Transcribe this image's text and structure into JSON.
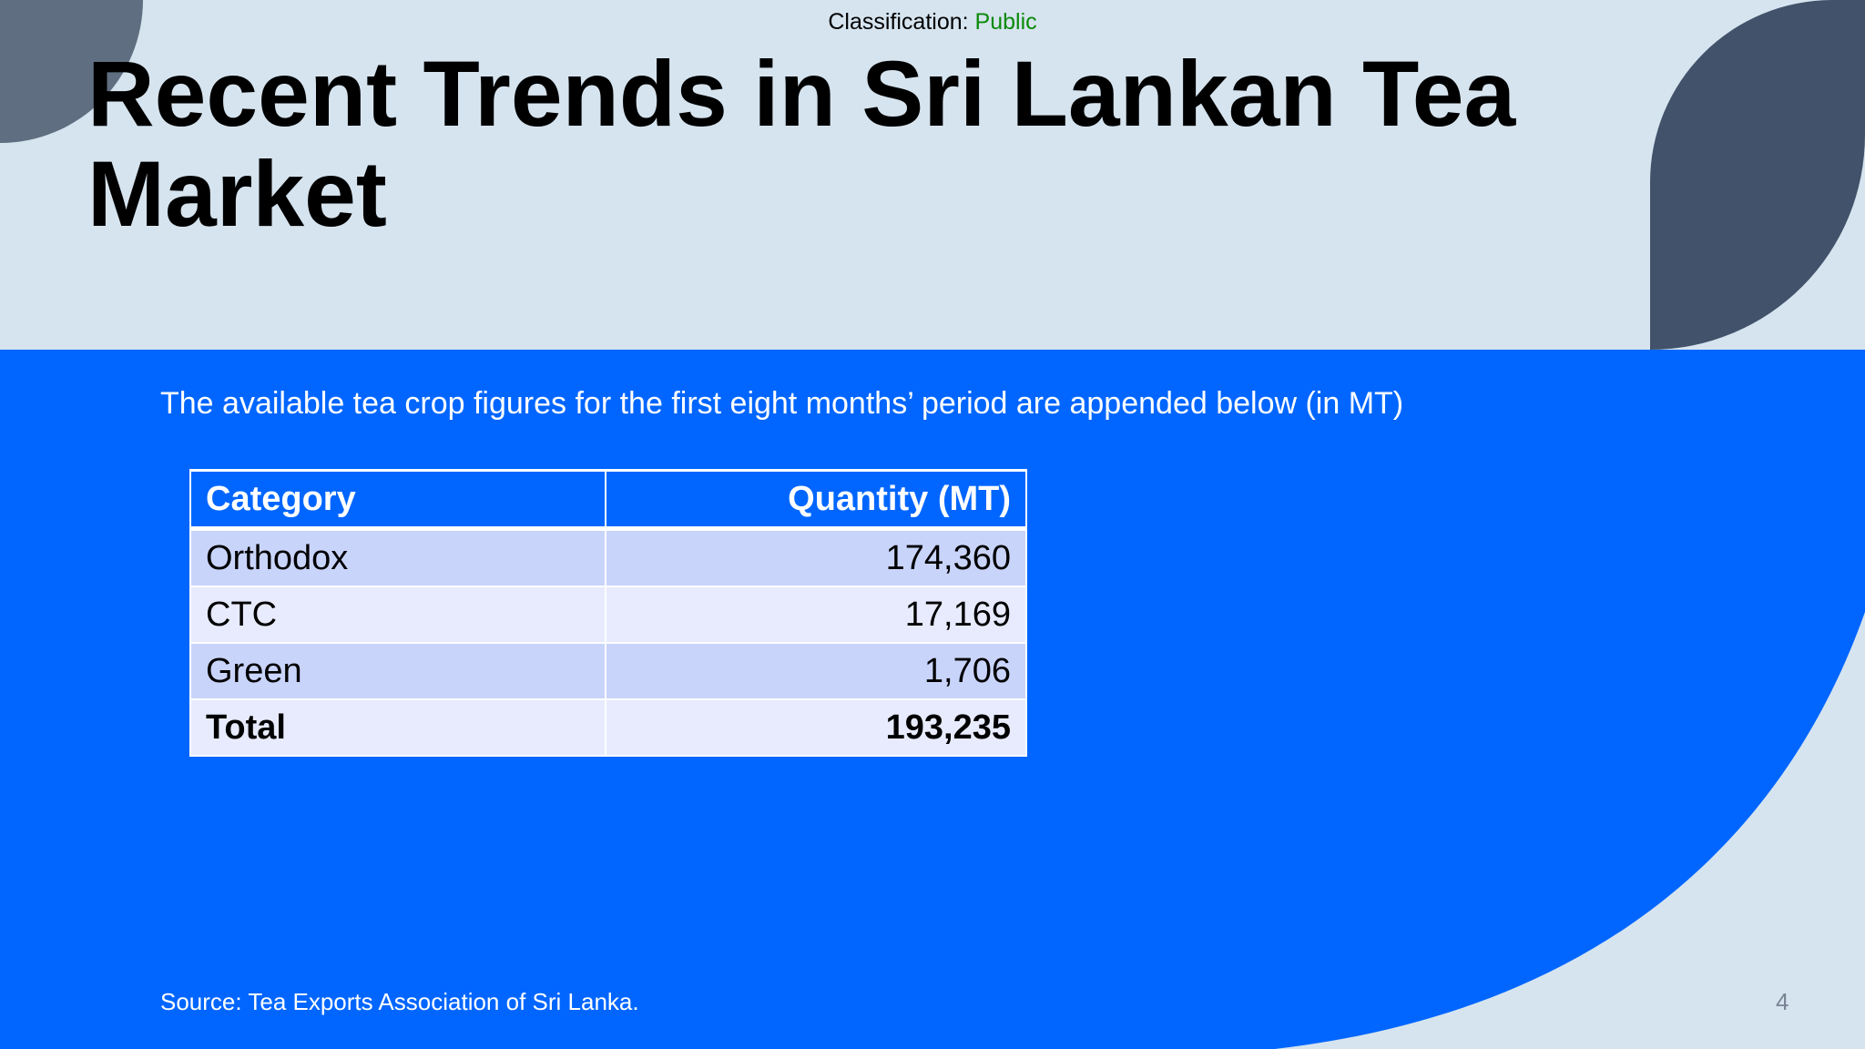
{
  "header": {
    "classification_label": "Classification:",
    "classification_value": "Public",
    "title": "Recent Trends in Sri Lankan Tea Market"
  },
  "body": {
    "intro": "The available tea crop figures for the first eight months’ period are appended below (in MT)"
  },
  "table": {
    "headers": [
      "Category",
      "Quantity (MT)"
    ],
    "rows": [
      {
        "category": "Orthodox",
        "quantity": "174,360"
      },
      {
        "category": "CTC",
        "quantity": "17,169"
      },
      {
        "category": "Green",
        "quantity": "1,706"
      },
      {
        "category": "Total",
        "quantity": "193,235"
      }
    ]
  },
  "footer": {
    "source": "Source: Tea Exports Association of Sri Lanka.",
    "page_number": "4"
  },
  "colors": {
    "background": "#d6e4ef",
    "content_blue": "#0066ff",
    "dark_shape": "#42526a",
    "gray_shape": "#5f6e80",
    "row_dark": "#c9d4fb",
    "row_light": "#e7ebfd",
    "classification_green": "#0a8a0a"
  }
}
